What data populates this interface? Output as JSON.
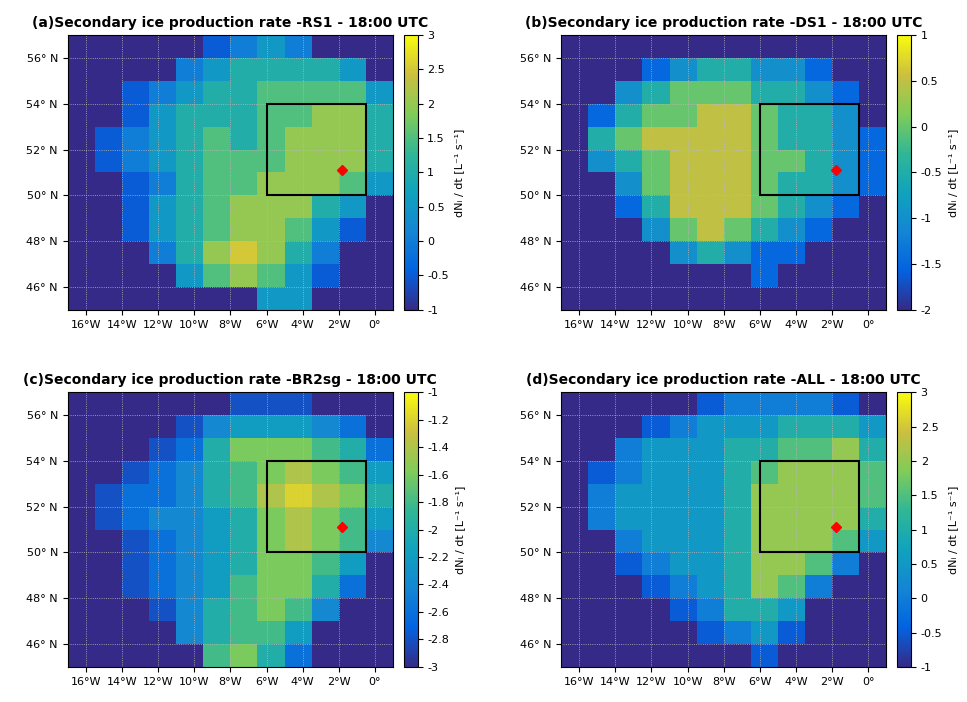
{
  "chart_data": [
    {
      "type": "heatmap",
      "title": "(a)Secondary ice production rate -RS1 - 18:00 UTC",
      "x": [
        -16.25,
        -14.75,
        -13.25,
        -11.75,
        -10.25,
        -8.75,
        -7.25,
        -5.75,
        -4.25,
        -2.75,
        -1.25,
        0.25
      ],
      "y": [
        45.5,
        46.5,
        47.5,
        48.5,
        49.5,
        50.5,
        51.5,
        52.5,
        53.5,
        54.5,
        55.5,
        56.5
      ],
      "cells": [
        [
          -1,
          -1,
          -1,
          -1,
          -1,
          -1,
          -1,
          0.5,
          0.5,
          -1,
          -1,
          -1
        ],
        [
          -1,
          -1,
          -1,
          -1,
          0.5,
          1.5,
          2,
          1.5,
          0.5,
          -0.5,
          -1,
          -1
        ],
        [
          -1,
          -1,
          -1,
          0,
          1,
          2,
          2.5,
          2,
          1,
          0,
          -1,
          -1
        ],
        [
          -1,
          -1,
          -0.5,
          0.5,
          1,
          1.5,
          2,
          2,
          1.5,
          0.5,
          -0.5,
          -1
        ],
        [
          -1,
          -1,
          -0.5,
          0.5,
          1,
          1.5,
          2,
          2,
          2,
          1,
          0.5,
          -1
        ],
        [
          -1,
          -1,
          -0.5,
          0,
          1,
          1.5,
          1.5,
          2,
          2,
          2,
          1.5,
          0.5
        ],
        [
          -1,
          -0.5,
          0,
          0.5,
          1,
          1.5,
          1.5,
          1.5,
          2,
          2,
          2,
          1
        ],
        [
          -1,
          -0.5,
          0,
          0.5,
          1,
          1.5,
          1,
          1.5,
          2,
          2,
          2,
          1
        ],
        [
          -1,
          -1,
          -0.5,
          0.5,
          1,
          1,
          1,
          1.5,
          1.5,
          2,
          2,
          1
        ],
        [
          -1,
          -1,
          -0.5,
          0,
          0.5,
          1,
          1,
          1.5,
          1.5,
          1.5,
          1.5,
          0.5
        ],
        [
          -1,
          -1,
          -1,
          -1,
          0,
          0.5,
          1,
          1,
          1,
          1,
          0.5,
          -1
        ],
        [
          -1,
          -1,
          -1,
          -1,
          -1,
          -0.5,
          0,
          0.5,
          0,
          -1,
          -1,
          -1
        ]
      ],
      "colorbar": {
        "range": [
          -1,
          3
        ],
        "ticks": [
          -1,
          -0.5,
          0,
          0.5,
          1,
          1.5,
          2,
          2.5,
          3
        ],
        "label": "dNᵢ / dt [L⁻¹ s⁻¹]"
      },
      "xlim": [
        -17,
        1
      ],
      "ylim": [
        45,
        57
      ],
      "xticks": [
        {
          "value": -16,
          "label": "16°W"
        },
        {
          "value": -14,
          "label": "14°W"
        },
        {
          "value": -12,
          "label": "12°W"
        },
        {
          "value": -10,
          "label": "10°W"
        },
        {
          "value": -8,
          "label": "8°W"
        },
        {
          "value": -6,
          "label": "6°W"
        },
        {
          "value": -4,
          "label": "4°W"
        },
        {
          "value": -2,
          "label": "2°W"
        },
        {
          "value": 0,
          "label": "0°"
        }
      ],
      "yticks": [
        {
          "value": 46,
          "label": "46° N"
        },
        {
          "value": 48,
          "label": "48° N"
        },
        {
          "value": 50,
          "label": "50° N"
        },
        {
          "value": 52,
          "label": "52° N"
        },
        {
          "value": 54,
          "label": "54° N"
        },
        {
          "value": 56,
          "label": "56° N"
        }
      ],
      "grid": true,
      "box": {
        "lon": [
          -6,
          -0.5
        ],
        "lat": [
          50,
          54
        ]
      },
      "point": {
        "lon": -1.8,
        "lat": 51.1,
        "color": "#ff0000",
        "marker": "diamond"
      }
    },
    {
      "type": "heatmap",
      "title": "(b)Secondary ice production rate -DS1 - 18:00 UTC",
      "x": [
        -16.25,
        -14.75,
        -13.25,
        -11.75,
        -10.25,
        -8.75,
        -7.25,
        -5.75,
        -4.25,
        -2.75,
        -1.25,
        0.25
      ],
      "y": [
        45.5,
        46.5,
        47.5,
        48.5,
        49.5,
        50.5,
        51.5,
        52.5,
        53.5,
        54.5,
        55.5,
        56.5
      ],
      "cells": [
        [
          -2,
          -2,
          -2,
          -2,
          -2,
          -2,
          -2,
          -2,
          -2,
          -2,
          -2,
          -2
        ],
        [
          -2,
          -2,
          -2,
          -2,
          -2,
          -2,
          -2,
          -1.5,
          -2,
          -2,
          -2,
          -2
        ],
        [
          -2,
          -2,
          -2,
          -2,
          -1,
          -0.5,
          -1,
          -1.5,
          -1.5,
          -2,
          -2,
          -2
        ],
        [
          -2,
          -2,
          -2,
          -1,
          0,
          0.5,
          0,
          -0.5,
          -1,
          -1.5,
          -2,
          -2
        ],
        [
          -2,
          -2,
          -1.5,
          -0.5,
          0.5,
          0.5,
          0.5,
          0,
          -0.5,
          -1,
          -1.5,
          -2
        ],
        [
          -2,
          -2,
          -1,
          0,
          0.5,
          0.5,
          0.5,
          0,
          -0.5,
          -0.5,
          -1,
          -1.5
        ],
        [
          -2,
          -1,
          -0.5,
          0,
          0.5,
          0.5,
          0.5,
          0,
          0,
          -0.5,
          -1,
          -1.5
        ],
        [
          -2,
          -0.5,
          0,
          0.5,
          0.5,
          0.5,
          0.5,
          0,
          -0.5,
          -0.5,
          -1,
          -1.5
        ],
        [
          -2,
          -1.5,
          -0.5,
          0,
          0,
          0.5,
          0.5,
          0,
          -0.5,
          -0.5,
          -1,
          -2
        ],
        [
          -2,
          -2,
          -1,
          -0.5,
          0,
          0,
          0,
          -0.5,
          -0.5,
          -1,
          -1.5,
          -2
        ],
        [
          -2,
          -2,
          -2,
          -1.5,
          -1,
          -0.5,
          -0.5,
          -1,
          -1,
          -1.5,
          -2,
          -2
        ],
        [
          -2,
          -2,
          -2,
          -2,
          -2,
          -2,
          -2,
          -2,
          -2,
          -2,
          -2,
          -2
        ]
      ],
      "colorbar": {
        "range": [
          -2,
          1
        ],
        "ticks": [
          -2,
          -1.5,
          -1,
          -0.5,
          0,
          0.5,
          1
        ],
        "label": "dNᵢ / dt [L⁻¹ s⁻¹]"
      },
      "xlim": [
        -17,
        1
      ],
      "ylim": [
        45,
        57
      ],
      "xticks": [
        {
          "value": -16,
          "label": "16°W"
        },
        {
          "value": -14,
          "label": "14°W"
        },
        {
          "value": -12,
          "label": "12°W"
        },
        {
          "value": -10,
          "label": "10°W"
        },
        {
          "value": -8,
          "label": "8°W"
        },
        {
          "value": -6,
          "label": "6°W"
        },
        {
          "value": -4,
          "label": "4°W"
        },
        {
          "value": -2,
          "label": "2°W"
        },
        {
          "value": 0,
          "label": "0°"
        }
      ],
      "yticks": [
        {
          "value": 46,
          "label": "46° N"
        },
        {
          "value": 48,
          "label": "48° N"
        },
        {
          "value": 50,
          "label": "50° N"
        },
        {
          "value": 52,
          "label": "52° N"
        },
        {
          "value": 54,
          "label": "54° N"
        },
        {
          "value": 56,
          "label": "56° N"
        }
      ],
      "grid": true,
      "box": {
        "lon": [
          -6,
          -0.5
        ],
        "lat": [
          50,
          54
        ]
      },
      "point": {
        "lon": -1.8,
        "lat": 51.1,
        "color": "#ff0000",
        "marker": "diamond"
      }
    },
    {
      "type": "heatmap",
      "title": "(c)Secondary ice production rate -BR2sg - 18:00 UTC",
      "x": [
        -16.25,
        -14.75,
        -13.25,
        -11.75,
        -10.25,
        -8.75,
        -7.25,
        -5.75,
        -4.25,
        -2.75,
        -1.25,
        0.25
      ],
      "y": [
        45.5,
        46.5,
        47.5,
        48.5,
        49.5,
        50.5,
        51.5,
        52.5,
        53.5,
        54.5,
        55.5,
        56.5
      ],
      "cells": [
        [
          -3,
          -3,
          -3,
          -3,
          -3,
          -1.8,
          -1.6,
          -2,
          -2.6,
          -3,
          -3,
          -3
        ],
        [
          -3,
          -3,
          -3,
          -3,
          -2.4,
          -2,
          -1.8,
          -1.8,
          -2.2,
          -3,
          -3,
          -3
        ],
        [
          -3,
          -3,
          -3,
          -2.8,
          -2.4,
          -2,
          -1.8,
          -1.6,
          -1.8,
          -2.4,
          -3,
          -3
        ],
        [
          -3,
          -3,
          -2.8,
          -2.6,
          -2.4,
          -2.2,
          -1.8,
          -1.6,
          -1.6,
          -2,
          -2.6,
          -3
        ],
        [
          -3,
          -3,
          -2.8,
          -2.6,
          -2.4,
          -2.2,
          -2,
          -1.6,
          -1.6,
          -1.8,
          -2.2,
          -3
        ],
        [
          -3,
          -3,
          -2.8,
          -2.6,
          -2.4,
          -2.2,
          -2,
          -1.6,
          -1.4,
          -1.6,
          -1.8,
          -2.4
        ],
        [
          -3,
          -2.8,
          -2.6,
          -2.4,
          -2.4,
          -2.2,
          -2,
          -1.6,
          -1.4,
          -1.6,
          -1.8,
          -2.2
        ],
        [
          -3,
          -2.8,
          -2.6,
          -2.6,
          -2.4,
          -2,
          -1.8,
          -1.4,
          -1.2,
          -1.4,
          -1.6,
          -2
        ],
        [
          -3,
          -3,
          -2.8,
          -2.6,
          -2.4,
          -2,
          -1.8,
          -1.6,
          -1.4,
          -1.6,
          -1.8,
          -2.2
        ],
        [
          -3,
          -3,
          -3,
          -2.8,
          -2.6,
          -2,
          -1.6,
          -1.6,
          -1.6,
          -1.8,
          -2,
          -2.6
        ],
        [
          -3,
          -3,
          -3,
          -3,
          -2.8,
          -2.4,
          -2.2,
          -2.2,
          -2.2,
          -2.4,
          -2.6,
          -3
        ],
        [
          -3,
          -3,
          -3,
          -3,
          -3,
          -3,
          -2.8,
          -2.8,
          -2.8,
          -3,
          -3,
          -3
        ]
      ],
      "colorbar": {
        "range": [
          -3,
          -1
        ],
        "ticks": [
          -3,
          -2.8,
          -2.6,
          -2.4,
          -2.2,
          -2,
          -1.8,
          -1.6,
          -1.4,
          -1.2,
          -1
        ],
        "label": "dNᵢ / dt [L⁻¹ s⁻¹]"
      },
      "xlim": [
        -17,
        1
      ],
      "ylim": [
        45,
        57
      ],
      "xticks": [
        {
          "value": -16,
          "label": "16°W"
        },
        {
          "value": -14,
          "label": "14°W"
        },
        {
          "value": -12,
          "label": "12°W"
        },
        {
          "value": -10,
          "label": "10°W"
        },
        {
          "value": -8,
          "label": "8°W"
        },
        {
          "value": -6,
          "label": "6°W"
        },
        {
          "value": -4,
          "label": "4°W"
        },
        {
          "value": -2,
          "label": "2°W"
        },
        {
          "value": 0,
          "label": "0°"
        }
      ],
      "yticks": [
        {
          "value": 46,
          "label": "46° N"
        },
        {
          "value": 48,
          "label": "48° N"
        },
        {
          "value": 50,
          "label": "50° N"
        },
        {
          "value": 52,
          "label": "52° N"
        },
        {
          "value": 54,
          "label": "54° N"
        },
        {
          "value": 56,
          "label": "56° N"
        }
      ],
      "grid": true,
      "box": {
        "lon": [
          -6,
          -0.5
        ],
        "lat": [
          50,
          54
        ]
      },
      "point": {
        "lon": -1.8,
        "lat": 51.1,
        "color": "#ff0000",
        "marker": "diamond"
      }
    },
    {
      "type": "heatmap",
      "title": "(d)Secondary ice production rate -ALL - 18:00 UTC",
      "x": [
        -16.25,
        -14.75,
        -13.25,
        -11.75,
        -10.25,
        -8.75,
        -7.25,
        -5.75,
        -4.25,
        -2.75,
        -1.25,
        0.25
      ],
      "y": [
        45.5,
        46.5,
        47.5,
        48.5,
        49.5,
        50.5,
        51.5,
        52.5,
        53.5,
        54.5,
        55.5,
        56.5
      ],
      "cells": [
        [
          -1,
          -1,
          -1,
          -1,
          -1,
          -1,
          -1,
          -0.5,
          -1,
          -1,
          -1,
          -1
        ],
        [
          -1,
          -1,
          -1,
          -1,
          -1,
          -0.5,
          0,
          0.5,
          -0.5,
          -1,
          -1,
          -1
        ],
        [
          -1,
          -1,
          -1,
          -1,
          -0.5,
          0,
          1,
          1,
          0.5,
          -1,
          -1,
          -1
        ],
        [
          -1,
          -1,
          -1,
          -0.5,
          0,
          0.5,
          1,
          2,
          1.5,
          0,
          -1,
          -1
        ],
        [
          -1,
          -1,
          -0.5,
          0,
          0.5,
          0.5,
          1,
          2,
          2,
          1.5,
          0,
          -1
        ],
        [
          -1,
          -1,
          0,
          0.5,
          0.5,
          0.5,
          1,
          2,
          2,
          2,
          1.5,
          0.5
        ],
        [
          -1,
          0,
          0.5,
          0.5,
          0.5,
          0.5,
          1,
          2,
          2,
          2,
          2,
          1
        ],
        [
          -1,
          0,
          0.5,
          0.5,
          0.5,
          0.5,
          1,
          2,
          2,
          2,
          2,
          1.5
        ],
        [
          -1,
          -0.5,
          0,
          0.5,
          0.5,
          0.5,
          1,
          1.5,
          2,
          2,
          2,
          1.5
        ],
        [
          -1,
          -1,
          0,
          0.5,
          0.5,
          0.5,
          1,
          1,
          1.5,
          1.5,
          2,
          1
        ],
        [
          -1,
          -1,
          -1,
          -0.5,
          0,
          0.5,
          0.5,
          0.5,
          1,
          1,
          1,
          0.5
        ],
        [
          -1,
          -1,
          -1,
          -1,
          -1,
          -0.5,
          0,
          0,
          0,
          0,
          -0.5,
          -1
        ]
      ],
      "colorbar": {
        "range": [
          -1,
          3
        ],
        "ticks": [
          -1,
          -0.5,
          0,
          0.5,
          1,
          1.5,
          2,
          2.5,
          3
        ],
        "label": "dNᵢ / dt [L⁻¹ s⁻¹]"
      },
      "xlim": [
        -17,
        1
      ],
      "ylim": [
        45,
        57
      ],
      "xticks": [
        {
          "value": -16,
          "label": "16°W"
        },
        {
          "value": -14,
          "label": "14°W"
        },
        {
          "value": -12,
          "label": "12°W"
        },
        {
          "value": -10,
          "label": "10°W"
        },
        {
          "value": -8,
          "label": "8°W"
        },
        {
          "value": -6,
          "label": "6°W"
        },
        {
          "value": -4,
          "label": "4°W"
        },
        {
          "value": -2,
          "label": "2°W"
        },
        {
          "value": 0,
          "label": "0°"
        }
      ],
      "yticks": [
        {
          "value": 46,
          "label": "46° N"
        },
        {
          "value": 48,
          "label": "48° N"
        },
        {
          "value": 50,
          "label": "50° N"
        },
        {
          "value": 52,
          "label": "52° N"
        },
        {
          "value": 54,
          "label": "54° N"
        },
        {
          "value": 56,
          "label": "56° N"
        }
      ],
      "grid": true,
      "box": {
        "lon": [
          -6,
          -0.5
        ],
        "lat": [
          50,
          54
        ]
      },
      "point": {
        "lon": -1.8,
        "lat": 51.1,
        "color": "#ff0000",
        "marker": "diamond"
      }
    }
  ]
}
